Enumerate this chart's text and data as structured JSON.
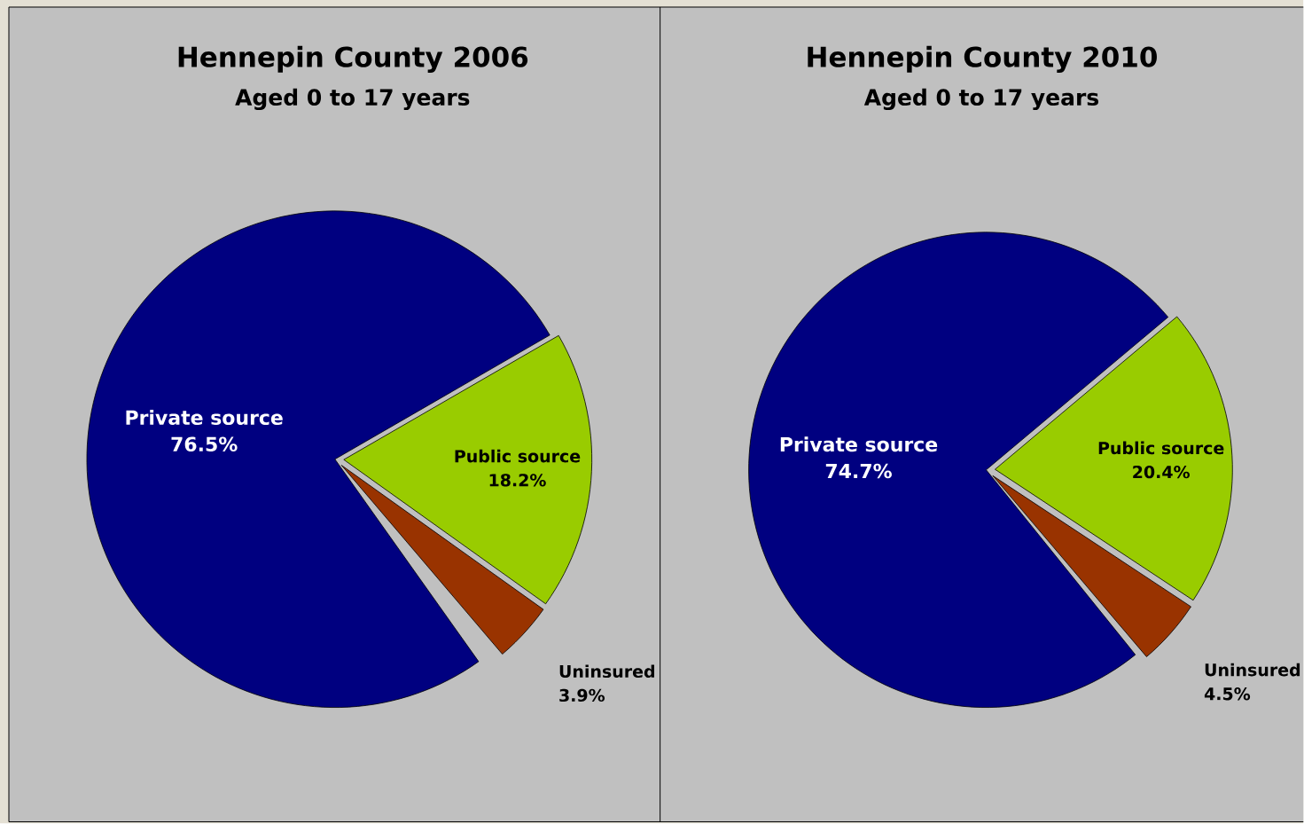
{
  "chart_data": [
    {
      "type": "pie",
      "title": "Hennepin County 2006",
      "subtitle": "Aged 0 to 17 years",
      "categories": [
        "Private source",
        "Public source",
        "Uninsured"
      ],
      "values": [
        76.5,
        18.2,
        3.9
      ],
      "colors": [
        "#000080",
        "#99cc00",
        "#993300"
      ],
      "value_labels": [
        "76.5%",
        "18.2%",
        "3.9%"
      ]
    },
    {
      "type": "pie",
      "title": "Hennepin County 2010",
      "subtitle": "Aged 0 to 17 years",
      "categories": [
        "Private source",
        "Public source",
        "Uninsured"
      ],
      "values": [
        74.7,
        20.4,
        4.5
      ],
      "colors": [
        "#000080",
        "#99cc00",
        "#993300"
      ],
      "value_labels": [
        "74.7%",
        "20.4%",
        "4.5%"
      ]
    }
  ]
}
